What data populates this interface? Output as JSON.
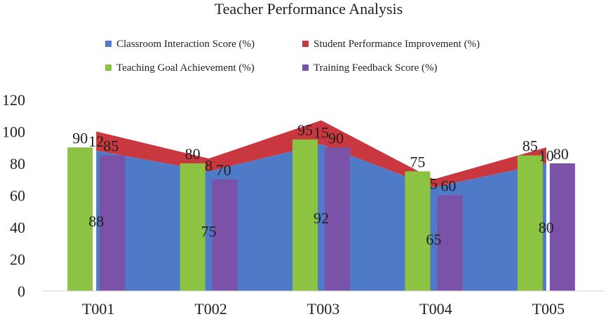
{
  "chart_data": {
    "type": "bar",
    "title": "Teacher Performance Analysis",
    "categories": [
      "T001",
      "T002",
      "T003",
      "T004",
      "T005"
    ],
    "ylim": [
      0,
      120
    ],
    "yticks": [
      0,
      20,
      40,
      60,
      80,
      100,
      120
    ],
    "grid": false,
    "legend_position": "top",
    "series": [
      {
        "name": "Classroom Interaction Score (%)",
        "kind": "stacked-area",
        "color": "#4f7ac7",
        "values": [
          88,
          75,
          92,
          65,
          80
        ]
      },
      {
        "name": "Student Performance Improvement (%)",
        "kind": "stacked-area",
        "color": "#c9383e",
        "values": [
          12,
          8,
          15,
          5,
          10
        ]
      },
      {
        "name": "Teaching Goal Achievement (%)",
        "kind": "bar",
        "color": "#8cc342",
        "values": [
          90,
          80,
          95,
          75,
          85
        ]
      },
      {
        "name": "Training Feedback Score (%)",
        "kind": "bar",
        "color": "#7a52a8",
        "values": [
          85,
          70,
          90,
          60,
          80
        ]
      }
    ]
  }
}
